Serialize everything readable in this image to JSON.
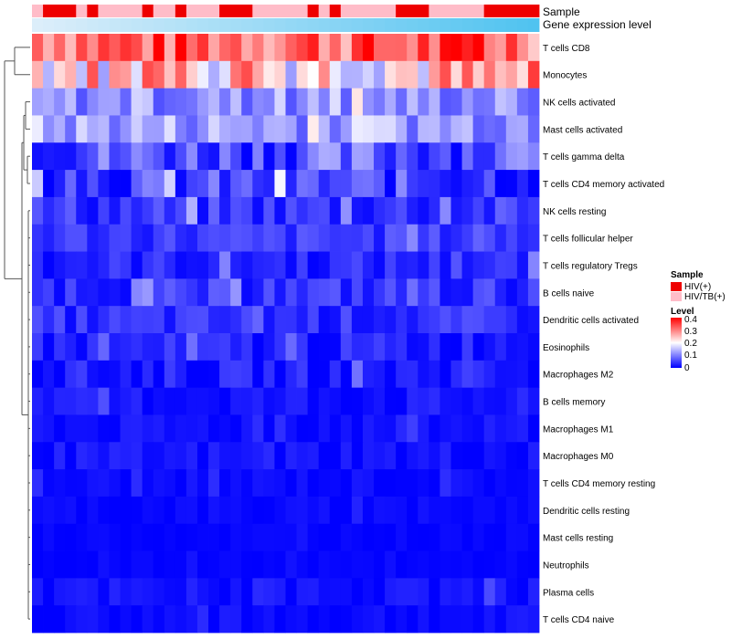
{
  "chart_data": {
    "type": "heatmap",
    "annotation_tracks": [
      "Sample",
      "Gene expression level"
    ],
    "rows": [
      "T cells CD8",
      "Monocytes",
      "NK cells activated",
      "Mast cells activated",
      "T cells gamma delta",
      "T cells CD4 memory activated",
      "NK cells resting",
      "T cells follicular helper",
      "T cells regulatory  Tregs",
      "B cells naive",
      "Dendritic cells activated",
      "Eosinophils",
      "Macrophages M2",
      "B cells memory",
      "Macrophages M1",
      "Macrophages M0",
      "T cells CD4 memory resting",
      "Dendritic cells resting",
      "Mast cells resting",
      "Neutrophils",
      "Plasma cells",
      "T cells CD4 naive"
    ],
    "sample_groups": [
      1,
      0,
      0,
      0,
      1,
      0,
      1,
      1,
      1,
      1,
      0,
      1,
      1,
      0,
      1,
      1,
      1,
      0,
      0,
      0,
      1,
      1,
      1,
      1,
      1,
      0,
      1,
      0,
      1,
      1,
      1,
      1,
      1,
      0,
      0,
      0,
      1,
      1,
      1,
      1,
      1,
      0,
      0,
      0,
      0,
      0
    ],
    "legend_sample": {
      "title": "Sample",
      "entries": [
        {
          "label": "HIV(+)",
          "color": "#ee0000"
        },
        {
          "label": "HIV/TB(+)",
          "color": "#ffbcc8"
        }
      ]
    },
    "legend_level": {
      "title": "Level",
      "ticks": [
        "0.4",
        "0.3",
        "0.2",
        "0.1",
        "0"
      ],
      "range": [
        0,
        0.4
      ]
    },
    "colors": {
      "low": "#0000ff",
      "mid": "#ffffff",
      "high": "#ff0000"
    },
    "dendrogram": "row clustering tree (left side)",
    "values_note": "estimated relative fractions 0-0.4 per sample; columns = 46 samples"
  }
}
